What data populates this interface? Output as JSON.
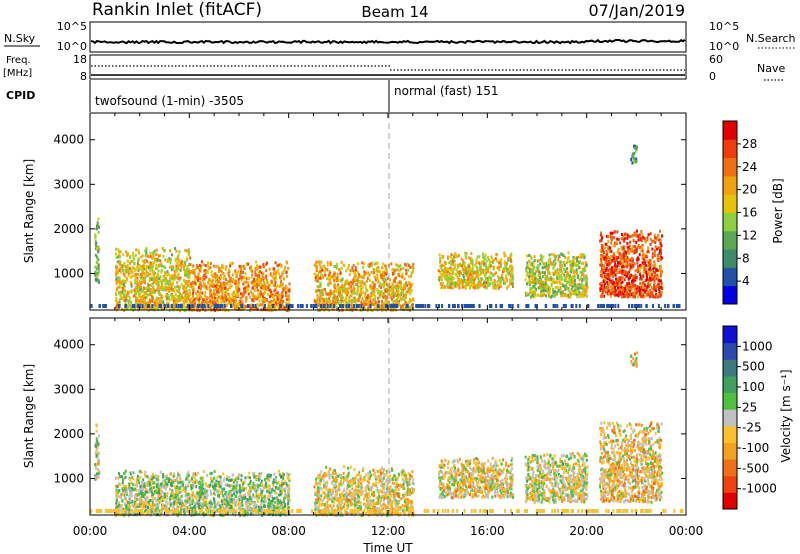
{
  "header": {
    "station": "Rankin Inlet (fitACF)",
    "beam": "Beam 14",
    "date": "07/Jan/2019"
  },
  "panels": {
    "nsky": {
      "left_label": "N.Sky",
      "right_label": "N.Search",
      "left_ticks": [
        "10^5",
        "10^0"
      ],
      "right_ticks": [
        "10^5",
        "10^0"
      ],
      "right_legend_style": "dotted"
    },
    "freq": {
      "left_label_line1": "Freq.",
      "left_label_line2": "[MHz]",
      "right_label": "Nave",
      "left_ticks": [
        "18",
        "8"
      ],
      "right_ticks": [
        "60",
        "0"
      ],
      "right_legend_style": "dotted"
    },
    "cpid": {
      "label": "CPID",
      "segments": [
        {
          "text": "twofsound (1-min) -3505",
          "start": "00:00",
          "end": "12:00"
        },
        {
          "text": "normal (fast) 151",
          "start": "12:00",
          "end": "24:00"
        }
      ]
    }
  },
  "colors": {
    "background": "#ffffff",
    "axis": "#000000",
    "divider": "#aaaaaa"
  },
  "chart_data": [
    {
      "type": "heatmap",
      "xlabel": "",
      "ylabel": "Slant Range [km]",
      "xlim": [
        "00:00",
        "24:00"
      ],
      "ylim": [
        180,
        4600
      ],
      "yticks": [
        1000,
        2000,
        3000,
        4000
      ],
      "colorbar": {
        "label": "Power [dB]",
        "ticks": [
          "28",
          "24",
          "20",
          "16",
          "12",
          "8",
          "4"
        ],
        "range": [
          0,
          32
        ],
        "scale_colors": [
          "#0000e0",
          "#2050a8",
          "#3c8c6a",
          "#5aa856",
          "#8cd040",
          "#e6c20a",
          "#f0a010",
          "#f07010",
          "#f03c0a",
          "#e00000"
        ]
      },
      "echo_regions": [
        {
          "t_start": "00:10",
          "t_end": "00:20",
          "range_min": 800,
          "range_max": 2400,
          "mean_value": 12
        },
        {
          "t_start": "01:00",
          "t_end": "04:00",
          "range_min": 200,
          "range_max": 1600,
          "mean_value": 18
        },
        {
          "t_start": "04:00",
          "t_end": "08:00",
          "range_min": 200,
          "range_max": 1300,
          "mean_value": 22
        },
        {
          "t_start": "09:00",
          "t_end": "13:00",
          "range_min": 200,
          "range_max": 1300,
          "mean_value": 20
        },
        {
          "t_start": "14:00",
          "t_end": "17:00",
          "range_min": 700,
          "range_max": 1500,
          "mean_value": 18
        },
        {
          "t_start": "17:30",
          "t_end": "20:00",
          "range_min": 500,
          "range_max": 1500,
          "mean_value": 16
        },
        {
          "t_start": "20:30",
          "t_end": "23:00",
          "range_min": 500,
          "range_max": 2000,
          "mean_value": 26
        },
        {
          "t_start": "21:45",
          "t_end": "22:00",
          "range_min": 3500,
          "range_max": 3900,
          "mean_value": 10
        }
      ]
    },
    {
      "type": "heatmap",
      "xlabel": "Time UT",
      "ylabel": "Slant Range [km]",
      "xlim": [
        "00:00",
        "24:00"
      ],
      "ylim": [
        180,
        4600
      ],
      "xticks": [
        "00:00",
        "04:00",
        "08:00",
        "12:00",
        "16:00",
        "20:00",
        "00:00"
      ],
      "yticks": [
        1000,
        2000,
        3000,
        4000
      ],
      "colorbar": {
        "label": "Velocity [m s⁻¹]",
        "ticks": [
          "1000",
          "500",
          "100",
          "25",
          "-25",
          "-100",
          "-500",
          "-1000"
        ],
        "range": [
          -1250,
          1250
        ],
        "scale_colors": [
          "#e00000",
          "#f04010",
          "#f07018",
          "#f5a020",
          "#fbc02d",
          "#c0c0c0",
          "#50c040",
          "#40a060",
          "#3a7a80",
          "#2a4ab0",
          "#1010d0"
        ]
      },
      "echo_regions": [
        {
          "t_start": "00:10",
          "t_end": "00:20",
          "range_min": 1000,
          "range_max": 2400,
          "mean_value": 50
        },
        {
          "t_start": "01:00",
          "t_end": "04:00",
          "range_min": 200,
          "range_max": 1200,
          "mean_value": 60
        },
        {
          "t_start": "04:00",
          "t_end": "08:00",
          "range_min": 200,
          "range_max": 1200,
          "mean_value": 120
        },
        {
          "t_start": "09:00",
          "t_end": "13:00",
          "range_min": 200,
          "range_max": 1300,
          "mean_value": -150
        },
        {
          "t_start": "14:00",
          "t_end": "17:00",
          "range_min": 600,
          "range_max": 1500,
          "mean_value": -180
        },
        {
          "t_start": "17:30",
          "t_end": "20:00",
          "range_min": 500,
          "range_max": 1600,
          "mean_value": -80
        },
        {
          "t_start": "20:30",
          "t_end": "23:00",
          "range_min": 500,
          "range_max": 2300,
          "mean_value": -250
        },
        {
          "t_start": "21:45",
          "t_end": "22:00",
          "range_min": 3500,
          "range_max": 3900,
          "mean_value": -150
        }
      ]
    }
  ]
}
